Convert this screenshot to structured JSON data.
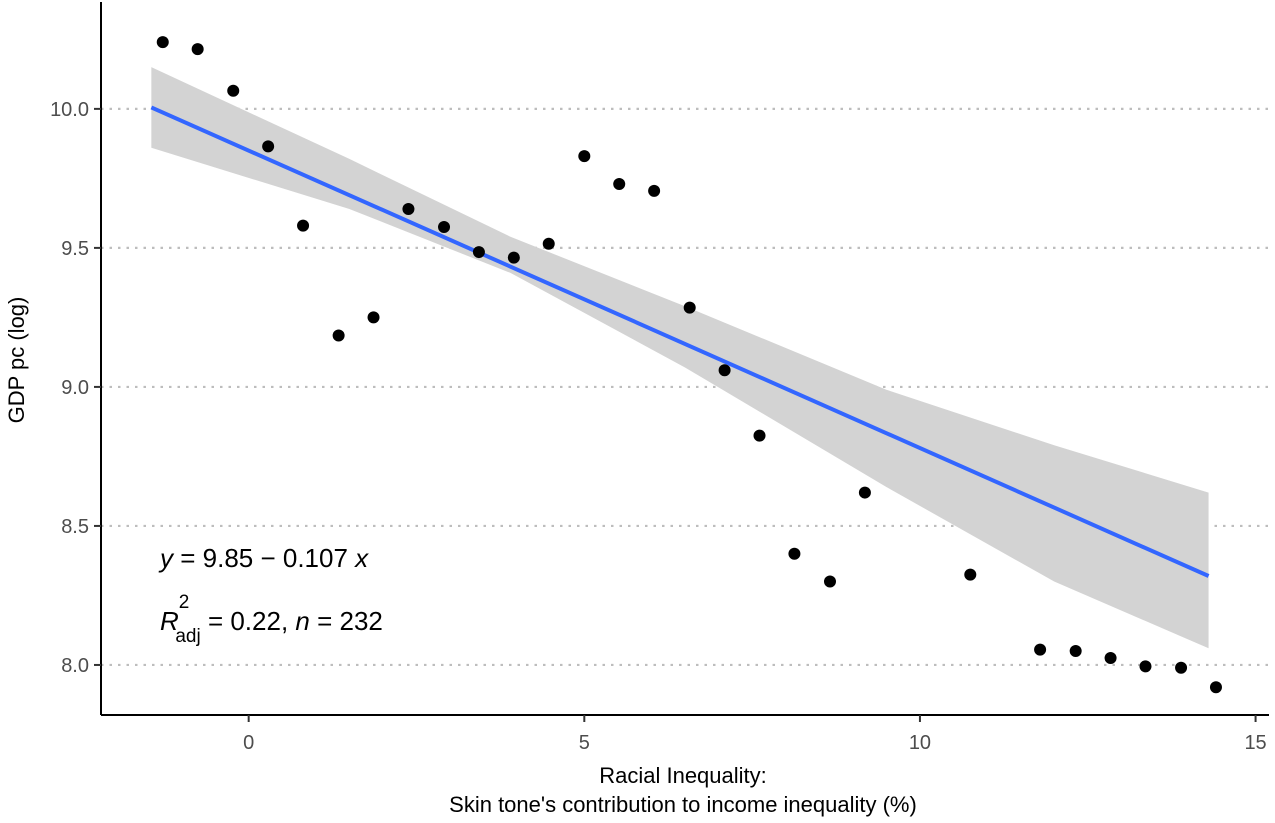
{
  "chart_data": {
    "type": "scatter",
    "xlabel_line1": "Racial Inequality:",
    "xlabel_line2": "Skin tone's contribution to income inequality (%)",
    "ylabel": "GDP pc (log)",
    "xlim": [
      -2.2,
      15.2
    ],
    "ylim": [
      7.82,
      10.37
    ],
    "x_ticks": [
      0,
      5,
      10,
      15
    ],
    "x_tick_labels": [
      "0",
      "5",
      "10",
      "15"
    ],
    "y_ticks": [
      8.0,
      8.5,
      9.0,
      9.5,
      10.0
    ],
    "y_tick_labels": [
      "8.0",
      "8.5",
      "9.0",
      "9.5",
      "10.0"
    ],
    "grid": "horizontal-dotted",
    "points": [
      {
        "x": -1.28,
        "y": 10.24
      },
      {
        "x": -0.76,
        "y": 10.215
      },
      {
        "x": -0.23,
        "y": 10.065
      },
      {
        "x": 0.29,
        "y": 9.865
      },
      {
        "x": 0.81,
        "y": 9.58
      },
      {
        "x": 1.34,
        "y": 9.185
      },
      {
        "x": 1.86,
        "y": 9.25
      },
      {
        "x": 2.38,
        "y": 9.64
      },
      {
        "x": 2.91,
        "y": 9.575
      },
      {
        "x": 3.43,
        "y": 9.485
      },
      {
        "x": 3.95,
        "y": 9.465
      },
      {
        "x": 4.47,
        "y": 9.515
      },
      {
        "x": 5.0,
        "y": 9.83
      },
      {
        "x": 5.52,
        "y": 9.73
      },
      {
        "x": 6.04,
        "y": 9.705
      },
      {
        "x": 6.57,
        "y": 9.285
      },
      {
        "x": 7.09,
        "y": 9.06
      },
      {
        "x": 7.61,
        "y": 8.825
      },
      {
        "x": 8.13,
        "y": 8.4
      },
      {
        "x": 8.66,
        "y": 8.3
      },
      {
        "x": 9.18,
        "y": 8.62
      },
      {
        "x": 10.75,
        "y": 8.325
      },
      {
        "x": 11.79,
        "y": 8.055
      },
      {
        "x": 12.32,
        "y": 8.05
      },
      {
        "x": 12.84,
        "y": 8.025
      },
      {
        "x": 13.36,
        "y": 7.995
      },
      {
        "x": 13.89,
        "y": 7.99
      },
      {
        "x": 14.41,
        "y": 7.92
      }
    ],
    "fit": {
      "intercept": 9.85,
      "slope": -0.107,
      "x_range": [
        -1.45,
        14.3
      ],
      "color": "#3366ff",
      "ci_color": "#d3d3d3",
      "ci_band": [
        {
          "x": -1.45,
          "lower": 9.86,
          "upper": 10.15
        },
        {
          "x": 1.5,
          "lower": 9.64,
          "upper": 9.82
        },
        {
          "x": 3.9,
          "lower": 9.41,
          "upper": 9.54
        },
        {
          "x": 6.5,
          "lower": 9.07,
          "upper": 9.29
        },
        {
          "x": 9.5,
          "lower": 8.64,
          "upper": 8.99
        },
        {
          "x": 12.0,
          "lower": 8.3,
          "upper": 8.79
        },
        {
          "x": 14.3,
          "lower": 8.06,
          "upper": 8.62
        }
      ]
    },
    "annotations": {
      "equation": {
        "y": "y",
        "eq": " = 9.85 − 0.107 ",
        "x": "x"
      },
      "stats": {
        "R": "R",
        "sup": "2",
        "sub": "adj",
        "mid": " = 0.22, ",
        "n": "n",
        "tail": " = 232"
      }
    },
    "point_color": "#000000"
  }
}
